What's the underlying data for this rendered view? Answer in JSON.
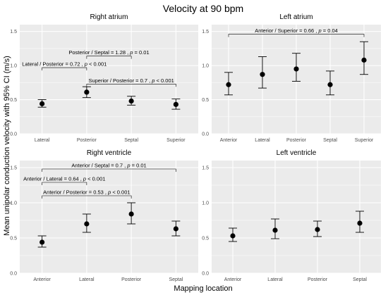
{
  "title": "Velocity at 90 bpm",
  "xlabel": "Mapping location",
  "ylabel": "Mean unipolar conduction velocity with 95% CI (m/s)",
  "colors": {
    "panel_bg": "#ebebeb",
    "grid": "#ffffff",
    "mark": "#000000",
    "tick_text": "#4d4d4d"
  },
  "chart_data": [
    {
      "type": "scatter",
      "title": "Right atrium",
      "categories": [
        "Lateral",
        "Posterior",
        "Septal",
        "Superior"
      ],
      "values": [
        0.44,
        0.61,
        0.48,
        0.43
      ],
      "ci_lower": [
        0.39,
        0.53,
        0.42,
        0.36
      ],
      "ci_upper": [
        0.5,
        0.69,
        0.55,
        0.51
      ],
      "ylim": [
        0,
        1.6
      ],
      "yticks": [
        "0.0",
        "0.5",
        "1.0",
        "1.5"
      ],
      "grid": true,
      "annotations": [
        {
          "from": "Lateral",
          "to": "Posterior",
          "y": 0.97,
          "text": "Lateral / Posterior = 0.72 , p < 0.001"
        },
        {
          "from": "Posterior",
          "to": "Septal",
          "y": 1.14,
          "text": "Posterior / Septal = 1.28 , p = 0.01"
        },
        {
          "from": "Posterior",
          "to": "Superior",
          "y": 0.73,
          "text": "Superior / Posterior = 0.7 , p < 0.001"
        }
      ]
    },
    {
      "type": "scatter",
      "title": "Left atrium",
      "categories": [
        "Anterior",
        "Lateral",
        "Posterior",
        "Septal",
        "Superior"
      ],
      "values": [
        0.72,
        0.87,
        0.95,
        0.72,
        1.08
      ],
      "ci_lower": [
        0.57,
        0.67,
        0.77,
        0.57,
        0.87
      ],
      "ci_upper": [
        0.9,
        1.13,
        1.18,
        0.92,
        1.35
      ],
      "ylim": [
        0,
        1.6
      ],
      "yticks": [
        "0.0",
        "0.5",
        "1.0",
        "1.5"
      ],
      "grid": true,
      "annotations": [
        {
          "from": "Anterior",
          "to": "Superior",
          "y": 1.46,
          "text": "Anterior / Superior = 0.66 , p = 0.04"
        }
      ]
    },
    {
      "type": "scatter",
      "title": "Right ventricle",
      "categories": [
        "Anterior",
        "Lateral",
        "Posterior",
        "Septal"
      ],
      "values": [
        0.44,
        0.7,
        0.84,
        0.63
      ],
      "ci_lower": [
        0.37,
        0.58,
        0.7,
        0.53
      ],
      "ci_upper": [
        0.53,
        0.84,
        1.0,
        0.74
      ],
      "ylim": [
        0,
        1.6
      ],
      "yticks": [
        "0.0",
        "0.5",
        "1.0",
        "1.5"
      ],
      "grid": true,
      "annotations": [
        {
          "from": "Anterior",
          "to": "Septal",
          "y": 1.48,
          "text": "Anterior / Septal = 0.7 , p = 0.01"
        },
        {
          "from": "Anterior",
          "to": "Lateral",
          "y": 1.29,
          "text": "Anterior / Lateral = 0.64 , p < 0.001"
        },
        {
          "from": "Anterior",
          "to": "Posterior",
          "y": 1.1,
          "text": "Anterior / Posterior = 0.53 , p < 0.001"
        }
      ]
    },
    {
      "type": "scatter",
      "title": "Left ventricle",
      "categories": [
        "Anterior",
        "Lateral",
        "Posterior",
        "Septal"
      ],
      "values": [
        0.53,
        0.61,
        0.62,
        0.71
      ],
      "ci_lower": [
        0.45,
        0.49,
        0.52,
        0.58
      ],
      "ci_upper": [
        0.64,
        0.77,
        0.74,
        0.88
      ],
      "ylim": [
        0,
        1.6
      ],
      "yticks": [
        "0.0",
        "0.5",
        "1.0",
        "1.5"
      ],
      "grid": true,
      "annotations": []
    }
  ]
}
